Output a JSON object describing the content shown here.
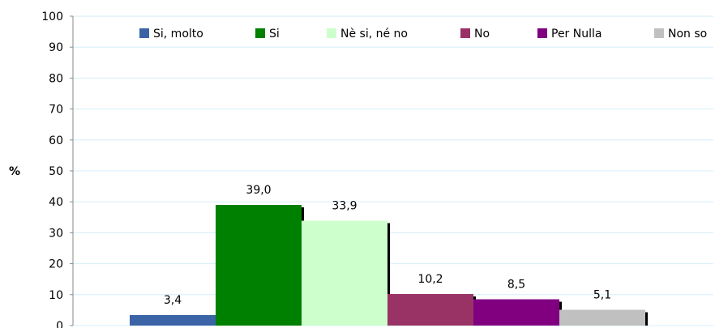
{
  "chart_data": {
    "type": "bar",
    "ylabel": "%",
    "ylim": [
      0,
      100
    ],
    "yticks": [
      0,
      10,
      20,
      30,
      40,
      50,
      60,
      70,
      80,
      90,
      100
    ],
    "grid": true,
    "legend_position": "top",
    "series": [
      {
        "name": "Si, molto",
        "value": 3.4,
        "label": "3,4",
        "color": "#3a64a6"
      },
      {
        "name": "Si",
        "value": 39.0,
        "label": "39,0",
        "color": "#008000"
      },
      {
        "name": "Nè si, né no",
        "value": 33.9,
        "label": "33,9",
        "color": "#ccffcc"
      },
      {
        "name": "No",
        "value": 10.2,
        "label": "10,2",
        "color": "#993366"
      },
      {
        "name": "Per Nulla",
        "value": 8.5,
        "label": "8,5",
        "color": "#800080"
      },
      {
        "name": "Non so",
        "value": 5.1,
        "label": "5,1",
        "color": "#c0c0c0"
      }
    ]
  }
}
